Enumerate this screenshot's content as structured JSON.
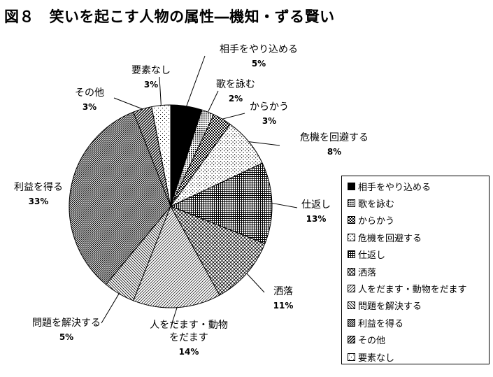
{
  "title": "図８　笑いを起こす人物の属性―機知・ずる賢い",
  "chart_data": {
    "type": "pie",
    "title": "図８　笑いを起こす人物の属性―機知・ずる賢い",
    "categories": [
      "相手をやり込める",
      "歌を詠む",
      "からかう",
      "危機を回避する",
      "仕返し",
      "洒落",
      "人をだます・動物をだます",
      "問題を解決する",
      "利益を得る",
      "その他",
      "要素なし"
    ],
    "values": [
      5,
      2,
      3,
      8,
      13,
      11,
      14,
      5,
      33,
      3,
      3
    ],
    "value_labels": [
      "5%",
      "2%",
      "3%",
      "8%",
      "13%",
      "11%",
      "14%",
      "5%",
      "33%",
      "3%",
      "3%"
    ],
    "slice_labels": [
      "相手をやり込める",
      "歌を詠む",
      "からかう",
      "危機を回避する",
      "仕返し",
      "洒落",
      "人をだます・動物\nをだます",
      "問題を解決する",
      "利益を得る",
      "その他",
      "要素なし"
    ],
    "legend_position": "right",
    "patterns": [
      "solid-dark",
      "dense-dots",
      "checker",
      "sparse-dots",
      "dense-grid",
      "diag-grid",
      "diag-up",
      "diag-down",
      "dense-hatch",
      "heavy-diag",
      "light-dots"
    ]
  }
}
